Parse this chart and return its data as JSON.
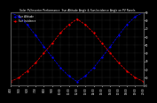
{
  "title": "Solar PV/Inverter Performance  Sun Altitude Angle & Sun Incidence Angle on PV Panels",
  "x_values": [
    4,
    5,
    6,
    7,
    8,
    9,
    10,
    11,
    12,
    13,
    14,
    15,
    16,
    17,
    18,
    19,
    20
  ],
  "sun_altitude": [
    90,
    85,
    75,
    62,
    48,
    35,
    22,
    12,
    5,
    12,
    22,
    35,
    48,
    62,
    75,
    85,
    90
  ],
  "sun_incidence": [
    5,
    10,
    18,
    28,
    40,
    52,
    65,
    75,
    82,
    75,
    65,
    52,
    40,
    28,
    18,
    10,
    5
  ],
  "altitude_color": "#0000ff",
  "incidence_color": "#ff0000",
  "x_tick_labels": [
    "4:00",
    "5:00",
    "6:00",
    "7:00",
    "8:00",
    "9:00",
    "10:00",
    "11:00",
    "12:00",
    "13:00",
    "14:00",
    "15:00",
    "16:00",
    "17:00",
    "18:00",
    "19:00",
    "20:00"
  ],
  "x_tick_positions": [
    4,
    5,
    6,
    7,
    8,
    9,
    10,
    11,
    12,
    13,
    14,
    15,
    16,
    17,
    18,
    19,
    20
  ],
  "y_tick_labels": [
    "0",
    "10",
    "20",
    "30",
    "40",
    "50",
    "60",
    "70",
    "80",
    "90"
  ],
  "y_tick_values": [
    0,
    10,
    20,
    30,
    40,
    50,
    60,
    70,
    80,
    90
  ],
  "ylim": [
    0,
    90
  ],
  "xlim": [
    4,
    20
  ],
  "legend_altitude": "Sun Altitude",
  "legend_incidence": "Sun Incidence",
  "bg_color": "#000000",
  "grid_color": "#555555",
  "title_color": "#ffffff",
  "tick_color": "#ffffff"
}
